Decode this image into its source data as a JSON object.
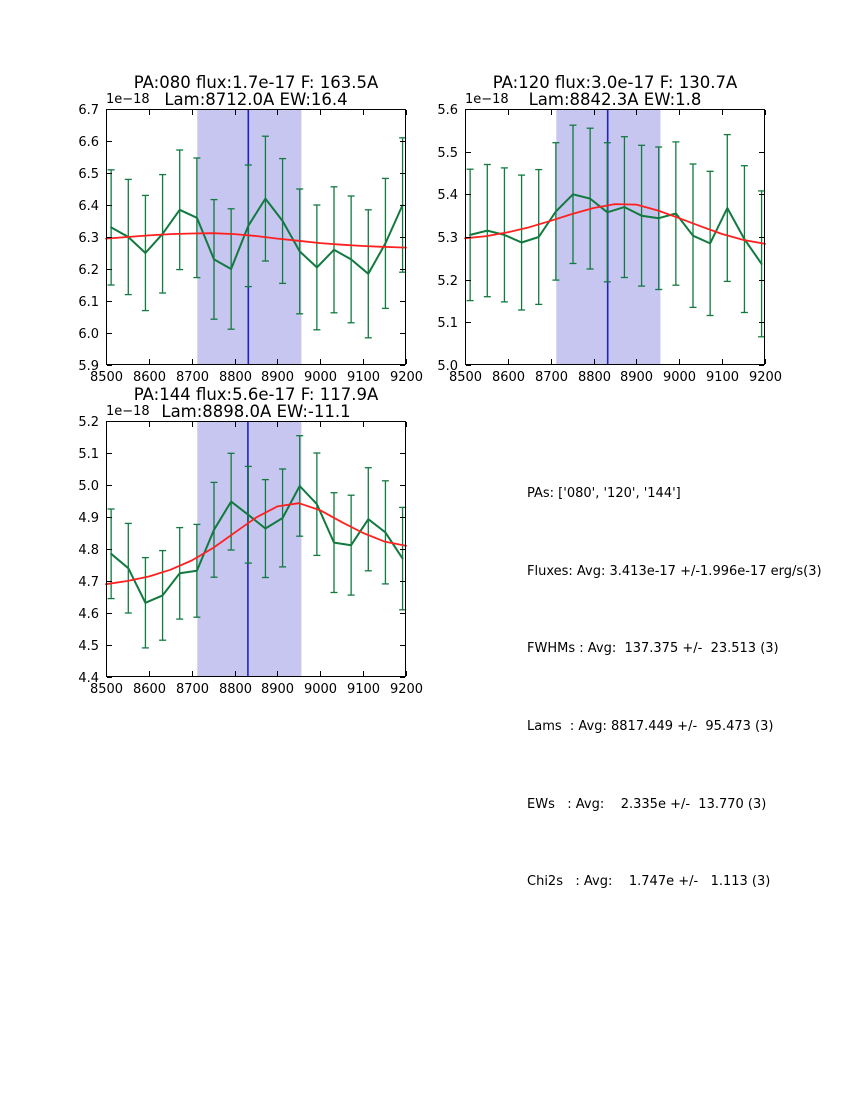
{
  "figure": {
    "background": "#ffffff"
  },
  "colors": {
    "data_series": "#127a3f",
    "fit_curve": "#ff2020",
    "center_line": "#2121c8",
    "shade": "#c6c6f1",
    "axis": "#000000",
    "text": "#000000"
  },
  "summary": {
    "lines": [
      "PAs: ['080', '120', '144']",
      "Fluxes: Avg: 3.413e-17 +/-1.996e-17 erg/s(3)",
      "FWHMs : Avg:  137.375 +/-  23.513 (3)",
      "Lams  : Avg: 8817.449 +/-  95.473 (3)",
      "EWs   : Avg:    2.335e +/-  13.770 (3)",
      "Chi2s   : Avg:    1.747e +/-   1.113 (3)"
    ]
  },
  "chart_data": [
    {
      "type": "line",
      "title_line1": "PA:080 flux:1.7e-17 F: 163.5A",
      "title_line2": "Lam:8712.0A EW:16.4",
      "offset_label": "1e−18",
      "xlim": [
        8500,
        9200
      ],
      "ylim": [
        5.9,
        6.7
      ],
      "xticks": [
        8500,
        8600,
        8700,
        8800,
        8900,
        9000,
        9100,
        9200
      ],
      "yticks": [
        5.9,
        6.0,
        6.1,
        6.2,
        6.3,
        6.4,
        6.5,
        6.6,
        6.7
      ],
      "shade_x": [
        8713,
        8956
      ],
      "vline_x": 8832,
      "x": [
        8512,
        8552,
        8592,
        8632,
        8672,
        8712,
        8752,
        8792,
        8832,
        8872,
        8912,
        8952,
        8992,
        9032,
        9072,
        9112,
        9152,
        9192
      ],
      "y": [
        6.33,
        6.3,
        6.25,
        6.31,
        6.385,
        6.36,
        6.23,
        6.2,
        6.335,
        6.42,
        6.35,
        6.255,
        6.205,
        6.26,
        6.23,
        6.185,
        6.28,
        6.4
      ],
      "yerr": [
        0.18,
        0.18,
        0.18,
        0.185,
        0.187,
        0.187,
        0.187,
        0.188,
        0.19,
        0.195,
        0.195,
        0.195,
        0.195,
        0.197,
        0.198,
        0.2,
        0.203,
        0.21
      ],
      "fit_x": [
        8500,
        8550,
        8600,
        8650,
        8700,
        8750,
        8800,
        8850,
        8900,
        8950,
        9000,
        9050,
        9100,
        9150,
        9200
      ],
      "fit_y": [
        6.295,
        6.3,
        6.305,
        6.309,
        6.311,
        6.312,
        6.309,
        6.303,
        6.295,
        6.288,
        6.281,
        6.276,
        6.272,
        6.269,
        6.267
      ]
    },
    {
      "type": "line",
      "title_line1": "PA:120 flux:3.0e-17 F: 130.7A",
      "title_line2": "Lam:8842.3A EW:1.8",
      "offset_label": "1e−18",
      "xlim": [
        8500,
        9200
      ],
      "ylim": [
        5.0,
        5.6
      ],
      "xticks": [
        8500,
        8600,
        8700,
        8800,
        8900,
        9000,
        9100,
        9200
      ],
      "yticks": [
        5.0,
        5.1,
        5.2,
        5.3,
        5.4,
        5.5,
        5.6
      ],
      "shade_x": [
        8713,
        8956
      ],
      "vline_x": 8833,
      "x": [
        8512,
        8552,
        8592,
        8632,
        8672,
        8712,
        8752,
        8792,
        8832,
        8872,
        8912,
        8952,
        8992,
        9032,
        9072,
        9112,
        9152,
        9192
      ],
      "y": [
        5.305,
        5.315,
        5.305,
        5.287,
        5.3,
        5.36,
        5.4,
        5.39,
        5.358,
        5.37,
        5.35,
        5.344,
        5.355,
        5.303,
        5.285,
        5.368,
        5.295,
        5.237
      ],
      "yerr": [
        0.154,
        0.155,
        0.157,
        0.158,
        0.158,
        0.161,
        0.162,
        0.165,
        0.163,
        0.165,
        0.165,
        0.167,
        0.168,
        0.168,
        0.169,
        0.172,
        0.172,
        0.171
      ],
      "fit_x": [
        8500,
        8550,
        8600,
        8650,
        8700,
        8750,
        8800,
        8850,
        8900,
        8950,
        9000,
        9050,
        9100,
        9150,
        9200
      ],
      "fit_y": [
        5.297,
        5.302,
        5.311,
        5.323,
        5.338,
        5.354,
        5.368,
        5.377,
        5.376,
        5.362,
        5.344,
        5.325,
        5.307,
        5.293,
        5.284
      ]
    },
    {
      "type": "line",
      "title_line1": "PA:144 flux:5.6e-17 F: 117.9A",
      "title_line2": "Lam:8898.0A EW:-11.1",
      "offset_label": "1e−18",
      "xlim": [
        8500,
        9200
      ],
      "ylim": [
        4.4,
        5.2
      ],
      "xticks": [
        8500,
        8600,
        8700,
        8800,
        8900,
        9000,
        9100,
        9200
      ],
      "yticks": [
        4.4,
        4.5,
        4.6,
        4.7,
        4.8,
        4.9,
        5.0,
        5.1,
        5.2
      ],
      "shade_x": [
        8713,
        8956
      ],
      "vline_x": 8831,
      "x": [
        8512,
        8552,
        8592,
        8632,
        8672,
        8712,
        8752,
        8792,
        8832,
        8872,
        8912,
        8952,
        8992,
        9032,
        9072,
        9112,
        9152,
        9192
      ],
      "y": [
        4.785,
        4.74,
        4.632,
        4.655,
        4.724,
        4.732,
        4.86,
        4.948,
        4.907,
        4.864,
        4.897,
        4.997,
        4.94,
        4.82,
        4.812,
        4.893,
        4.852,
        4.77
      ],
      "yerr": [
        0.14,
        0.14,
        0.141,
        0.14,
        0.143,
        0.145,
        0.148,
        0.151,
        0.151,
        0.153,
        0.153,
        0.157,
        0.16,
        0.156,
        0.156,
        0.161,
        0.161,
        0.16
      ],
      "fit_x": [
        8500,
        8550,
        8600,
        8650,
        8700,
        8750,
        8800,
        8850,
        8900,
        8950,
        9000,
        9050,
        9100,
        9150,
        9200
      ],
      "fit_y": [
        4.69,
        4.7,
        4.714,
        4.735,
        4.764,
        4.803,
        4.851,
        4.898,
        4.933,
        4.943,
        4.921,
        4.884,
        4.85,
        4.823,
        4.81
      ]
    }
  ]
}
